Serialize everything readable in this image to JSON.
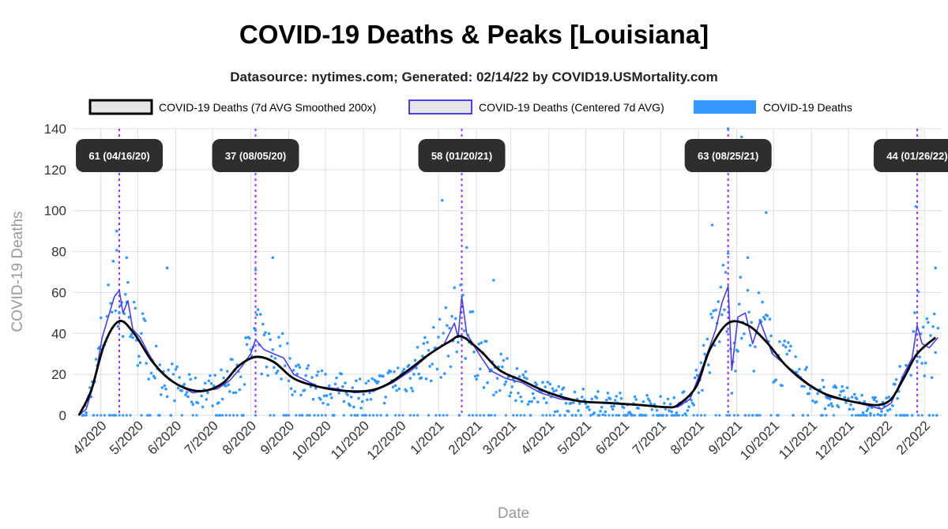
{
  "colors": {
    "smoothed": "#000000",
    "centered": "#4a3ff0",
    "daily": "#3399ff",
    "peak_line": "#9933ff",
    "peak_box": "#2e2e2e",
    "grid": "#dddddd"
  },
  "chart_data": {
    "type": "line",
    "title": "COVID-19 Deaths & Peaks [Louisiana]",
    "subtitle": "Datasource: nytimes.com; Generated: 02/14/22 by COVID19.USMortality.com",
    "xlabel": "Date",
    "ylabel": "COVID-19 Deaths",
    "ylim": [
      0,
      140
    ],
    "xlim": [
      "2020-03-09",
      "2022-02-15"
    ],
    "y_ticks": [
      0,
      20,
      40,
      60,
      80,
      100,
      120,
      140
    ],
    "x_ticks": [
      {
        "date": "2020-04-01",
        "label": "4/2020"
      },
      {
        "date": "2020-05-01",
        "label": "5/2020"
      },
      {
        "date": "2020-06-01",
        "label": "6/2020"
      },
      {
        "date": "2020-07-01",
        "label": "7/2020"
      },
      {
        "date": "2020-08-01",
        "label": "8/2020"
      },
      {
        "date": "2020-09-01",
        "label": "9/2020"
      },
      {
        "date": "2020-10-01",
        "label": "10/2020"
      },
      {
        "date": "2020-11-01",
        "label": "11/2020"
      },
      {
        "date": "2020-12-01",
        "label": "12/2020"
      },
      {
        "date": "2021-01-01",
        "label": "1/2021"
      },
      {
        "date": "2021-02-01",
        "label": "2/2021"
      },
      {
        "date": "2021-03-01",
        "label": "3/2021"
      },
      {
        "date": "2021-04-01",
        "label": "4/2021"
      },
      {
        "date": "2021-05-01",
        "label": "5/2021"
      },
      {
        "date": "2021-06-01",
        "label": "6/2021"
      },
      {
        "date": "2021-07-01",
        "label": "7/2021"
      },
      {
        "date": "2021-08-01",
        "label": "8/2021"
      },
      {
        "date": "2021-09-01",
        "label": "9/2021"
      },
      {
        "date": "2021-10-01",
        "label": "10/2021"
      },
      {
        "date": "2021-11-01",
        "label": "11/2021"
      },
      {
        "date": "2021-12-01",
        "label": "12/2021"
      },
      {
        "date": "2022-01-01",
        "label": "1/2022"
      },
      {
        "date": "2022-02-01",
        "label": "2/2022"
      }
    ],
    "grid": true,
    "legend_position": "top",
    "series": [
      {
        "name": "COVID-19 Deaths (7d AVG Smoothed 200x)",
        "style": "smoothed",
        "points": [
          [
            "2020-03-14",
            0
          ],
          [
            "2020-03-24",
            12
          ],
          [
            "2020-04-04",
            35
          ],
          [
            "2020-04-16",
            46
          ],
          [
            "2020-04-28",
            40
          ],
          [
            "2020-05-12",
            27
          ],
          [
            "2020-05-26",
            18
          ],
          [
            "2020-06-10",
            13
          ],
          [
            "2020-06-25",
            12
          ],
          [
            "2020-07-10",
            16
          ],
          [
            "2020-07-22",
            24
          ],
          [
            "2020-08-05",
            28.5
          ],
          [
            "2020-08-20",
            26
          ],
          [
            "2020-09-05",
            18
          ],
          [
            "2020-09-25",
            14
          ],
          [
            "2020-10-15",
            12
          ],
          [
            "2020-11-05",
            12
          ],
          [
            "2020-11-20",
            15
          ],
          [
            "2020-12-05",
            21
          ],
          [
            "2020-12-25",
            30
          ],
          [
            "2021-01-10",
            36
          ],
          [
            "2021-01-20",
            38.5
          ],
          [
            "2021-02-05",
            31
          ],
          [
            "2021-02-20",
            22
          ],
          [
            "2021-03-10",
            17
          ],
          [
            "2021-04-01",
            11
          ],
          [
            "2021-04-25",
            7
          ],
          [
            "2021-05-20",
            6
          ],
          [
            "2021-06-15",
            5
          ],
          [
            "2021-07-05",
            4
          ],
          [
            "2021-07-15",
            5
          ],
          [
            "2021-07-30",
            14
          ],
          [
            "2021-08-10",
            32
          ],
          [
            "2021-08-25",
            45
          ],
          [
            "2021-09-10",
            44
          ],
          [
            "2021-09-25",
            36
          ],
          [
            "2021-10-10",
            25
          ],
          [
            "2021-10-25",
            17
          ],
          [
            "2021-11-10",
            11
          ],
          [
            "2021-11-25",
            8
          ],
          [
            "2021-12-10",
            6
          ],
          [
            "2021-12-25",
            5
          ],
          [
            "2022-01-05",
            8
          ],
          [
            "2022-01-15",
            18
          ],
          [
            "2022-01-26",
            30
          ],
          [
            "2022-02-10",
            38
          ]
        ]
      },
      {
        "name": "COVID-19 Deaths (Centered 7d AVG)",
        "style": "centered",
        "points": [
          [
            "2020-03-14",
            0
          ],
          [
            "2020-03-20",
            3
          ],
          [
            "2020-03-27",
            17
          ],
          [
            "2020-04-02",
            38
          ],
          [
            "2020-04-08",
            50
          ],
          [
            "2020-04-12",
            58
          ],
          [
            "2020-04-16",
            61
          ],
          [
            "2020-04-19",
            50
          ],
          [
            "2020-04-23",
            56
          ],
          [
            "2020-04-27",
            42
          ],
          [
            "2020-05-03",
            38
          ],
          [
            "2020-05-10",
            30
          ],
          [
            "2020-05-18",
            22
          ],
          [
            "2020-05-26",
            18
          ],
          [
            "2020-06-05",
            14
          ],
          [
            "2020-06-15",
            11
          ],
          [
            "2020-06-25",
            12
          ],
          [
            "2020-07-05",
            13
          ],
          [
            "2020-07-15",
            17
          ],
          [
            "2020-07-25",
            24
          ],
          [
            "2020-08-01",
            30
          ],
          [
            "2020-08-05",
            37
          ],
          [
            "2020-08-12",
            32
          ],
          [
            "2020-08-20",
            30
          ],
          [
            "2020-08-28",
            28
          ],
          [
            "2020-09-05",
            20
          ],
          [
            "2020-09-15",
            17
          ],
          [
            "2020-09-25",
            14
          ],
          [
            "2020-10-10",
            13
          ],
          [
            "2020-10-25",
            11
          ],
          [
            "2020-11-10",
            12
          ],
          [
            "2020-11-25",
            16
          ],
          [
            "2020-12-10",
            22
          ],
          [
            "2020-12-25",
            30
          ],
          [
            "2021-01-05",
            34
          ],
          [
            "2021-01-14",
            45
          ],
          [
            "2021-01-17",
            38
          ],
          [
            "2021-01-20",
            58
          ],
          [
            "2021-01-24",
            40
          ],
          [
            "2021-02-03",
            30
          ],
          [
            "2021-02-12",
            22
          ],
          [
            "2021-02-25",
            18
          ],
          [
            "2021-03-10",
            16
          ],
          [
            "2021-03-25",
            11
          ],
          [
            "2021-04-10",
            8
          ],
          [
            "2021-04-25",
            7
          ],
          [
            "2021-05-15",
            6
          ],
          [
            "2021-06-10",
            5
          ],
          [
            "2021-07-01",
            4
          ],
          [
            "2021-07-15",
            4
          ],
          [
            "2021-07-25",
            8
          ],
          [
            "2021-08-05",
            25
          ],
          [
            "2021-08-15",
            42
          ],
          [
            "2021-08-20",
            55
          ],
          [
            "2021-08-25",
            63
          ],
          [
            "2021-08-28",
            22
          ],
          [
            "2021-09-02",
            48
          ],
          [
            "2021-09-08",
            50
          ],
          [
            "2021-09-14",
            35
          ],
          [
            "2021-09-20",
            46
          ],
          [
            "2021-09-30",
            30
          ],
          [
            "2021-10-10",
            25
          ],
          [
            "2021-10-20",
            20
          ],
          [
            "2021-11-01",
            14
          ],
          [
            "2021-11-15",
            9
          ],
          [
            "2021-12-01",
            7
          ],
          [
            "2021-12-15",
            5
          ],
          [
            "2021-12-28",
            3
          ],
          [
            "2022-01-05",
            6
          ],
          [
            "2022-01-15",
            20
          ],
          [
            "2022-01-22",
            28
          ],
          [
            "2022-01-26",
            44
          ],
          [
            "2022-01-30",
            35
          ],
          [
            "2022-02-05",
            33
          ],
          [
            "2022-02-12",
            38
          ]
        ]
      }
    ],
    "daily_points_description_free": true,
    "daily_series": {
      "name": "COVID-19 Deaths",
      "style": "daily",
      "seed_points": [
        [
          "2020-04-14",
          90
        ],
        [
          "2020-04-22",
          77
        ],
        [
          "2020-05-25",
          72
        ],
        [
          "2020-08-05",
          71
        ],
        [
          "2020-08-19",
          77
        ],
        [
          "2021-01-04",
          105
        ],
        [
          "2021-01-24",
          82
        ],
        [
          "2021-02-15",
          66
        ],
        [
          "2021-08-22",
          130
        ],
        [
          "2021-08-25",
          140
        ],
        [
          "2021-09-05",
          136
        ],
        [
          "2021-08-12",
          93
        ],
        [
          "2021-09-10",
          77
        ],
        [
          "2021-09-25",
          99
        ],
        [
          "2022-01-25",
          102
        ],
        [
          "2022-02-10",
          72
        ]
      ]
    },
    "peaks": [
      {
        "date": "2020-04-16",
        "label": "61 (04/16/20)"
      },
      {
        "date": "2020-08-05",
        "label": "37 (08/05/20)"
      },
      {
        "date": "2021-01-20",
        "label": "58 (01/20/21)"
      },
      {
        "date": "2021-08-25",
        "label": "63 (08/25/21)"
      },
      {
        "date": "2022-01-26",
        "label": "44 (01/26/22)"
      }
    ]
  }
}
